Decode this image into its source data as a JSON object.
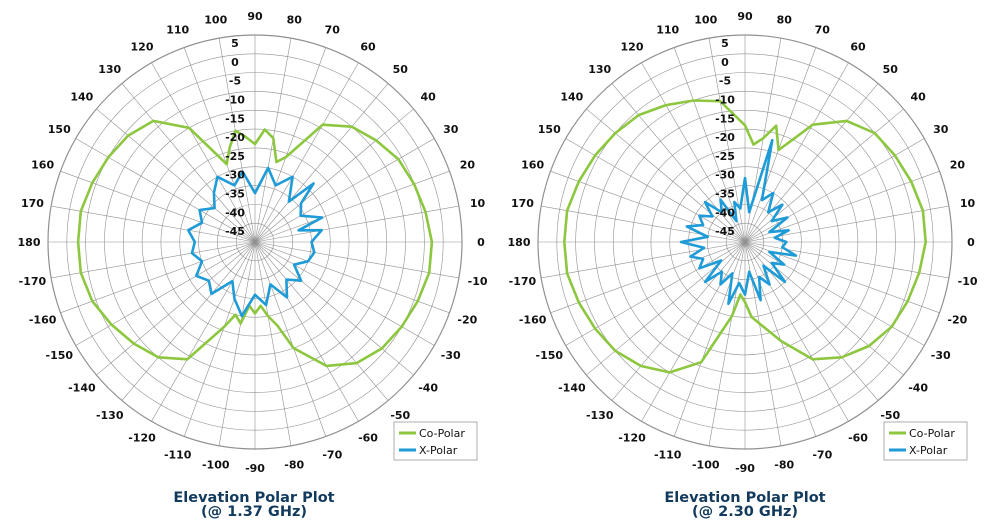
{
  "colors": {
    "co_polar": "#8dc63f",
    "x_polar": "#1f9bd7",
    "grid": "#909090",
    "title": "#123a5c"
  },
  "chart_data": [
    {
      "type": "polar",
      "title": "Elevation Polar Plot",
      "subtitle": "(@ 1.37 GHz)",
      "angle_labels": [
        "0",
        "10",
        "20",
        "30",
        "40",
        "50",
        "60",
        "70",
        "80",
        "90",
        "100",
        "110",
        "120",
        "130",
        "140",
        "150",
        "160",
        "170",
        "180",
        "-170",
        "-160",
        "-150",
        "-140",
        "-130",
        "-120",
        "-110",
        "-100",
        "-90",
        "-80",
        "-70",
        "-60",
        "-50",
        "-40",
        "-30",
        "-20",
        "-10"
      ],
      "radial_labels": [
        "5",
        "0",
        "-5",
        "-10",
        "-15",
        "-20",
        "-25",
        "-30",
        "-35",
        "-40",
        "-45"
      ],
      "rlim": [
        -50,
        5
      ],
      "legend": {
        "position": "bottom-right",
        "entries": [
          "Co-Polar",
          "X-Polar"
        ]
      },
      "series": [
        {
          "name": "Co-Polar",
          "angles": [
            0,
            10,
            20,
            30,
            40,
            50,
            60,
            70,
            75,
            80,
            85,
            90,
            95,
            100,
            105,
            110,
            120,
            130,
            140,
            150,
            160,
            170,
            180,
            190,
            200,
            210,
            220,
            230,
            240,
            250,
            255,
            260,
            265,
            270,
            275,
            280,
            285,
            290,
            300,
            310,
            320,
            330,
            340,
            350
          ],
          "values": [
            -3,
            -4,
            -5,
            -6,
            -8,
            -10,
            -14,
            -26,
            -28,
            -22,
            -20,
            -24,
            -22,
            -20,
            -24,
            -28,
            -15,
            -8,
            -6,
            -5,
            -4,
            -3,
            -3,
            -3,
            -4,
            -6,
            -8,
            -10,
            -14,
            -26,
            -30,
            -28,
            -33,
            -31,
            -33,
            -30,
            -27,
            -20,
            -12,
            -8,
            -6,
            -5,
            -4,
            -3
          ]
        },
        {
          "name": "X-Polar",
          "angles": [
            0,
            10,
            15,
            20,
            30,
            40,
            45,
            50,
            60,
            70,
            80,
            90,
            100,
            110,
            120,
            130,
            140,
            150,
            160,
            170,
            180,
            190,
            200,
            210,
            220,
            230,
            240,
            250,
            260,
            270,
            280,
            290,
            300,
            310,
            320,
            330,
            340,
            350
          ],
          "values": [
            -35,
            -32,
            -38,
            -31,
            -36,
            -34,
            -28,
            -36,
            -30,
            -34,
            -30,
            -37,
            -31,
            -34,
            -30,
            -33,
            -36,
            -33,
            -35,
            -32,
            -34,
            -33,
            -35,
            -32,
            -34,
            -32,
            -38,
            -34,
            -30,
            -36,
            -33,
            -38,
            -33,
            -37,
            -34,
            -38,
            -35,
            -34
          ]
        }
      ]
    },
    {
      "type": "polar",
      "title": "Elevation Polar Plot",
      "subtitle": "(@ 2.30 GHz)",
      "angle_labels": [
        "0",
        "10",
        "20",
        "30",
        "40",
        "50",
        "60",
        "70",
        "80",
        "90",
        "100",
        "110",
        "120",
        "130",
        "140",
        "150",
        "160",
        "170",
        "180",
        "-170",
        "-160",
        "-150",
        "-140",
        "-130",
        "-120",
        "-110",
        "-100",
        "-90",
        "-80",
        "-70",
        "-60",
        "-50",
        "-40",
        "-30",
        "-20",
        "-10"
      ],
      "radial_labels": [
        "5",
        "0",
        "-5",
        "-10",
        "-15",
        "-20",
        "-25",
        "-30",
        "-35",
        "-40",
        "-45"
      ],
      "rlim": [
        -50,
        5
      ],
      "legend": {
        "position": "bottom-right",
        "entries": [
          "Co-Polar",
          "X-Polar"
        ]
      },
      "series": [
        {
          "name": "Co-Polar",
          "angles": [
            0,
            10,
            20,
            30,
            40,
            50,
            60,
            65,
            70,
            75,
            80,
            85,
            90,
            95,
            100,
            110,
            120,
            130,
            140,
            150,
            160,
            170,
            180,
            190,
            200,
            210,
            220,
            230,
            240,
            250,
            260,
            265,
            270,
            275,
            280,
            290,
            300,
            310,
            320,
            330,
            340,
            350
          ],
          "values": [
            -2,
            -2,
            -3,
            -4,
            -5,
            -8,
            -14,
            -20,
            -24,
            -18,
            -22,
            -24,
            -19,
            -16,
            -12,
            -10,
            -8,
            -6,
            -5,
            -4,
            -3,
            -2,
            -2,
            -2,
            -3,
            -4,
            -5,
            -7,
            -10,
            -16,
            -30,
            -36,
            -34,
            -30,
            -28,
            -22,
            -14,
            -10,
            -7,
            -5,
            -4,
            -3
          ]
        },
        {
          "name": "X-Polar",
          "angles": [
            0,
            8,
            15,
            22,
            30,
            38,
            45,
            52,
            60,
            68,
            75,
            82,
            90,
            98,
            105,
            112,
            120,
            128,
            135,
            142,
            150,
            158,
            165,
            172,
            180,
            188,
            195,
            202,
            210,
            218,
            225,
            232,
            240,
            248,
            255,
            262,
            270,
            278,
            285,
            292,
            300,
            308,
            315,
            322,
            330,
            338,
            345,
            352
          ],
          "values": [
            -39,
            -42,
            -38,
            -43,
            -37,
            -41,
            -36,
            -40,
            -35,
            -38,
            -22,
            -42,
            -33,
            -41,
            -39,
            -44,
            -37,
            -40,
            -35,
            -39,
            -36,
            -38,
            -34,
            -40,
            -33,
            -39,
            -35,
            -38,
            -36,
            -42,
            -35,
            -40,
            -37,
            -41,
            -33,
            -39,
            -36,
            -42,
            -34,
            -40,
            -37,
            -42,
            -35,
            -41,
            -38,
            -43,
            -36,
            -40
          ]
        }
      ]
    }
  ]
}
